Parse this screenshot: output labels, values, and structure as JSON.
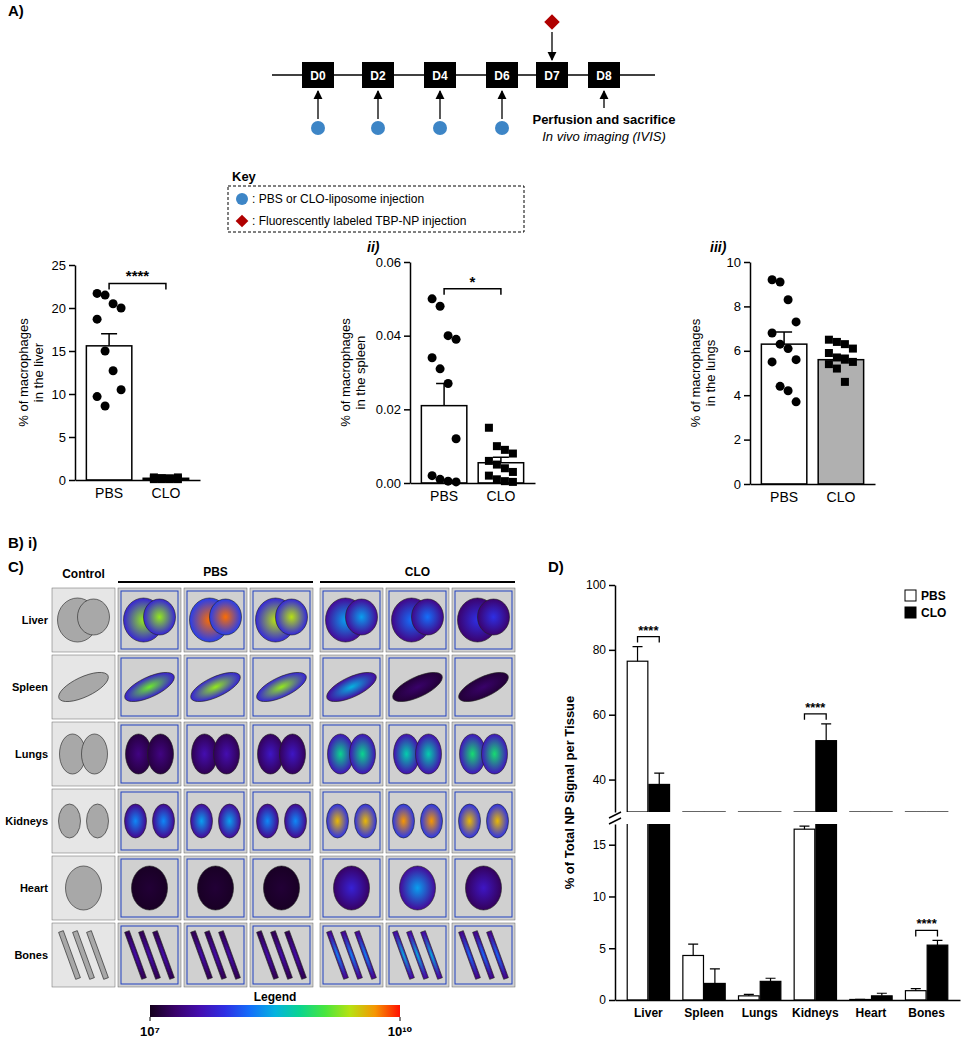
{
  "panel_labels": {
    "a": "A)",
    "b": "B) i)",
    "b_ii": "ii)",
    "b_iii": "iii)",
    "c": "C)",
    "d": "D)"
  },
  "timeline": {
    "days": [
      "D0",
      "D2",
      "D4",
      "D6",
      "D7",
      "D8"
    ],
    "circle_days": [
      "D0",
      "D2",
      "D4",
      "D6"
    ],
    "diamond_days": [
      "D7"
    ],
    "end_day": "D8",
    "end_label": "Perfusion and sacrifice",
    "end_sublabel": "In vivo imaging (IVIS)",
    "key_title": "Key",
    "key": [
      ": PBS or CLO-liposome injection",
      ": Fluorescently labeled TBP-NP injection"
    ]
  },
  "chart_data": [
    {
      "type": "bar",
      "categories": [
        "PBS",
        "CLO"
      ],
      "values": [
        15.6,
        0.2
      ],
      "errors": [
        1.4,
        0.05
      ],
      "points": [
        [
          21.7,
          21.5,
          20.5,
          20.0,
          18.7,
          15.0,
          12.7,
          10.5,
          9.7,
          8.6
        ],
        [
          0.1,
          0.2,
          0.1,
          0.3,
          0.2,
          0.1,
          0.2,
          0.1,
          0.3,
          0.2
        ]
      ],
      "colors": [
        "#ffffff",
        "#000000"
      ],
      "ylabel": [
        "% of macrophages",
        "in the liver"
      ],
      "ylim": [
        0,
        25
      ],
      "yticks": [
        0,
        5,
        10,
        15,
        20,
        25
      ],
      "annotation": "****"
    },
    {
      "type": "bar",
      "categories": [
        "PBS",
        "CLO"
      ],
      "values": [
        0.021,
        0.0055
      ],
      "errors": [
        0.006,
        0.0015
      ],
      "points": [
        [
          0.05,
          0.048,
          0.04,
          0.039,
          0.034,
          0.031,
          0.027,
          0.012,
          0.002,
          0.001,
          0.0005,
          0.0003
        ],
        [
          0.015,
          0.01,
          0.009,
          0.008,
          0.006,
          0.005,
          0.004,
          0.003,
          0.002,
          0.001,
          0.0005,
          0.0003
        ]
      ],
      "colors": [
        "#ffffff",
        "#ffffff"
      ],
      "ylabel": [
        "% of macrophages",
        "in the spleen"
      ],
      "ylim": [
        0,
        0.06
      ],
      "yticks": [
        {
          "value": 0,
          "label": "0.00"
        },
        {
          "value": 0.02,
          "label": "0.02"
        },
        {
          "value": 0.04,
          "label": "0.04"
        },
        {
          "value": 0.06,
          "label": "0.06"
        }
      ],
      "annotation": "*"
    },
    {
      "type": "bar",
      "categories": [
        "PBS",
        "CLO"
      ],
      "values": [
        6.3,
        5.6
      ],
      "errors": [
        0.55,
        0.2
      ],
      "points": [
        [
          9.2,
          9.1,
          8.3,
          7.3,
          6.8,
          6.3,
          6.1,
          5.6,
          5.5,
          4.4,
          4.2,
          3.7
        ],
        [
          6.5,
          6.4,
          6.3,
          6.1,
          5.9,
          5.7,
          5.6,
          5.5,
          5.4,
          5.2,
          4.6
        ]
      ],
      "colors": [
        "#ffffff",
        "#b0b0b0"
      ],
      "ylabel": [
        "% of macrophages",
        "in the lungs"
      ],
      "ylim": [
        0,
        10
      ],
      "yticks": [
        0,
        2,
        4,
        6,
        8,
        10
      ]
    },
    {
      "type": "bar",
      "categories": [
        "Liver",
        "Spleen",
        "Lungs",
        "Kidneys",
        "Heart",
        "Bones"
      ],
      "series": [
        {
          "name": "PBS",
          "color": "#ffffff",
          "values": [
            76.5,
            4.3,
            0.4,
            16.5,
            0.05,
            0.9
          ],
          "errors": [
            4.5,
            1.1,
            0.15,
            0.3,
            0.02,
            0.2
          ]
        },
        {
          "name": "CLO",
          "color": "#000000",
          "values": [
            38.5,
            1.6,
            1.8,
            52,
            0.4,
            5.3
          ],
          "errors": [
            3.5,
            1.4,
            0.3,
            5.2,
            0.25,
            0.45
          ]
        }
      ],
      "ylabel": "% of Total NP Signal per Tissue",
      "axis_segments": [
        {
          "ylim": [
            0,
            17
          ],
          "yticks": [
            0,
            5,
            10,
            15
          ]
        },
        {
          "ylim": [
            30,
            100
          ],
          "yticks": [
            40,
            60,
            80,
            100
          ]
        }
      ],
      "legend": "top-right",
      "annotations": [
        {
          "category": "Liver",
          "text": "****"
        },
        {
          "category": "Kidneys",
          "text": "****"
        },
        {
          "category": "Bones",
          "text": "****"
        }
      ]
    }
  ],
  "imaging": {
    "header": [
      "Control",
      "PBS",
      "CLO"
    ],
    "rows": [
      "Liver",
      "Spleen",
      "Lungs",
      "Kidneys",
      "Heart",
      "Bones"
    ],
    "signal_log10": [
      [
        9.3,
        9.8,
        9.4,
        8.4,
        8.2,
        7.9
      ],
      [
        9.2,
        9.3,
        9.3,
        8.5,
        7.3,
        7.3
      ],
      [
        7.4,
        7.6,
        7.7,
        8.8,
        8.7,
        8.9
      ],
      [
        8.3,
        8.4,
        8.3,
        9.6,
        9.7,
        9.6
      ],
      [
        7.1,
        7.1,
        7.1,
        7.8,
        8.4,
        7.7
      ],
      [
        7.6,
        7.6,
        7.6,
        8.3,
        8.5,
        8.2
      ]
    ],
    "colorbar": {
      "title": "Legend",
      "range": [
        7,
        10
      ],
      "ticks": [
        {
          "value": 7,
          "label": "10⁷"
        },
        {
          "value": 10,
          "label": "10¹⁰"
        }
      ]
    }
  }
}
